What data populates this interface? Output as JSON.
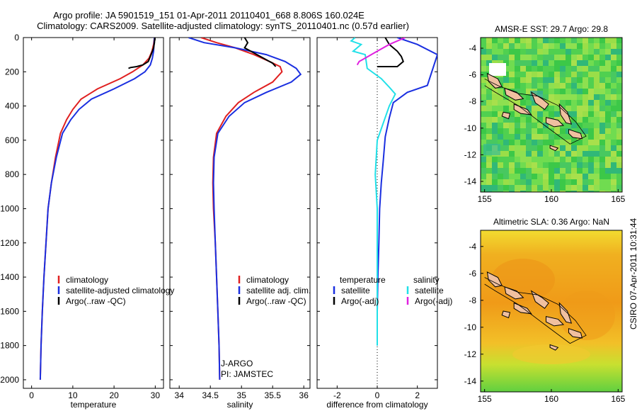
{
  "header": {
    "title_line1": "Argo profile: JA 5901519_151 01-Apr-2011 20110401_668 8.806S 160.024E",
    "title_line2": "Climatology: CARS2009. Satellite-adjusted climatology: synTS_20110401.nc (0.57d earlier)"
  },
  "stamp": "CSIRO 07-Apr-2011 10:31:44",
  "colors": {
    "climatology": "#e02020",
    "satellite": "#1a2fe0",
    "argo": "#000000",
    "sat_salinity": "#20e0e8",
    "argo_salinity": "#e020e0"
  },
  "chart_data": [
    {
      "type": "line",
      "panel": "temperature",
      "xlabel": "temperature",
      "ylabel": "",
      "xlim": [
        -2,
        32
      ],
      "ylim": [
        2050,
        0
      ],
      "xticks": [
        0,
        10,
        20,
        30
      ],
      "yticks": [
        0,
        200,
        400,
        600,
        800,
        1000,
        1200,
        1400,
        1600,
        1800,
        2000
      ],
      "legend": [
        "climatology",
        "satellite-adjusted climatology",
        "Argo(..raw -QC)"
      ],
      "series": [
        {
          "name": "climatology",
          "color": "#e02020",
          "x": [
            29.8,
            29.6,
            29.2,
            28.5,
            27.0,
            24.5,
            21.5,
            16,
            12,
            10,
            8.5,
            7,
            5.8,
            4.8,
            4.0,
            3.5,
            3.0,
            2.6,
            2.3,
            2.1
          ],
          "y": [
            0,
            40,
            80,
            120,
            160,
            200,
            240,
            300,
            360,
            420,
            480,
            560,
            700,
            850,
            1000,
            1200,
            1400,
            1600,
            1800,
            2000
          ]
        },
        {
          "name": "satellite-adjusted climatology",
          "color": "#1a2fe0",
          "x": [
            29.8,
            29.7,
            29.6,
            29.3,
            28.8,
            27.5,
            25,
            20,
            14.5,
            11.5,
            9.5,
            7.5,
            6.0,
            4.8,
            4.0,
            3.5,
            3.0,
            2.6,
            2.3,
            2.1
          ],
          "y": [
            0,
            40,
            80,
            120,
            160,
            200,
            240,
            300,
            360,
            420,
            480,
            560,
            700,
            850,
            1000,
            1200,
            1400,
            1600,
            1800,
            2000
          ]
        },
        {
          "name": "Argo(..raw -QC)",
          "color": "#000000",
          "x": [
            29.9,
            29.8,
            29.6,
            29.0,
            28.3,
            27.0,
            25.5,
            24.0,
            23.5
          ],
          "y": [
            0,
            30,
            60,
            100,
            140,
            160,
            170,
            175,
            180
          ]
        }
      ]
    },
    {
      "type": "line",
      "panel": "salinity",
      "xlabel": "salinity",
      "ylabel": "",
      "xlim": [
        33.85,
        36.1
      ],
      "ylim": [
        2050,
        0
      ],
      "xticks": [
        34,
        34.5,
        35,
        35.5,
        36
      ],
      "legend": [
        "climatology",
        "satellite adj. clim.",
        "Argo(..raw -QC)"
      ],
      "annotations": [
        "J-ARGO",
        "PI: JAMSTEC"
      ],
      "series": [
        {
          "name": "climatology",
          "color": "#e02020",
          "x": [
            34.35,
            34.6,
            34.9,
            35.2,
            35.45,
            35.62,
            35.65,
            35.5,
            35.2,
            34.95,
            34.75,
            34.6,
            34.55,
            34.54,
            34.55,
            34.58,
            34.6,
            34.62,
            34.64,
            34.65
          ],
          "y": [
            0,
            30,
            60,
            100,
            140,
            170,
            200,
            260,
            320,
            380,
            460,
            560,
            700,
            850,
            1000,
            1200,
            1400,
            1600,
            1800,
            2000
          ]
        },
        {
          "name": "satellite adj. clim.",
          "color": "#1a2fe0",
          "x": [
            34.15,
            34.4,
            34.9,
            35.4,
            35.7,
            35.88,
            35.95,
            35.8,
            35.4,
            35.05,
            34.8,
            34.62,
            34.56,
            34.55,
            34.56,
            34.58,
            34.6,
            34.62,
            34.64,
            34.65
          ],
          "y": [
            0,
            30,
            60,
            100,
            140,
            180,
            215,
            260,
            320,
            380,
            460,
            560,
            700,
            850,
            1000,
            1200,
            1400,
            1600,
            1800,
            2000
          ]
        },
        {
          "name": "Argo(..raw -QC)",
          "color": "#000000",
          "x": [
            35.05,
            35.1,
            35.05,
            35.2,
            35.35,
            35.5,
            35.55
          ],
          "y": [
            0,
            30,
            60,
            90,
            120,
            150,
            170
          ]
        }
      ]
    },
    {
      "type": "line",
      "panel": "difference",
      "xlabel": "difference from climatology",
      "ylabel": "",
      "xlim": [
        -3,
        3
      ],
      "ylim": [
        2050,
        0
      ],
      "xticks": [
        -2,
        0,
        2
      ],
      "legend": [
        "temperature",
        "satellite",
        "Argo(-adj)",
        "salinity",
        "satellite",
        "Argo(-adj)"
      ],
      "series": [
        {
          "name": "satellite",
          "color": "#1a2fe0",
          "x": [
            1.0,
            2.0,
            3.0,
            2.5,
            1.5,
            0.8,
            0.6,
            0.4,
            0.3,
            0.2,
            0.12,
            0.08,
            0.03,
            0.0,
            0.0
          ],
          "y": [
            0,
            40,
            100,
            280,
            320,
            380,
            470,
            580,
            720,
            850,
            1000,
            1200,
            1400,
            1600,
            1800
          ]
        },
        {
          "name": "Argo(-adj)",
          "color": "#000000",
          "x": [
            0.4,
            0.6,
            1.0,
            1.2,
            1.3,
            1.0,
            0.0
          ],
          "y": [
            0,
            40,
            80,
            110,
            140,
            170,
            170
          ]
        },
        {
          "name": "satellite",
          "color": "#20e0e8",
          "x": [
            -1.1,
            -1.3,
            -0.8,
            -1.2,
            -0.6,
            -0.5,
            0.2,
            0.6,
            0.9,
            0.6,
            0.3,
            0.0,
            -0.1,
            0.0,
            0.0,
            0.0
          ],
          "y": [
            0,
            20,
            40,
            80,
            100,
            180,
            240,
            290,
            330,
            400,
            500,
            600,
            800,
            1000,
            1400,
            1800
          ]
        },
        {
          "name": "Argo(-adj)",
          "color": "#e020e0",
          "x": [
            1.4,
            0.6,
            0.0,
            -0.6,
            -0.9,
            -1.0
          ],
          "y": [
            0,
            40,
            80,
            120,
            140,
            160
          ]
        }
      ]
    },
    {
      "type": "heatmap",
      "panel": "sst-map",
      "title": "AMSR-E SST: 29.7 Argo: 29.8",
      "xticks": [
        155,
        160,
        165
      ],
      "yticks": [
        -4,
        -6,
        -8,
        -10,
        -12,
        -14
      ]
    },
    {
      "type": "heatmap",
      "panel": "sla-map",
      "title": "Altimetric SLA: 0.36 Argo: NaN",
      "xticks": [
        155,
        160,
        165
      ],
      "yticks": [
        -4,
        -6,
        -8,
        -10,
        -12,
        -14
      ]
    }
  ]
}
